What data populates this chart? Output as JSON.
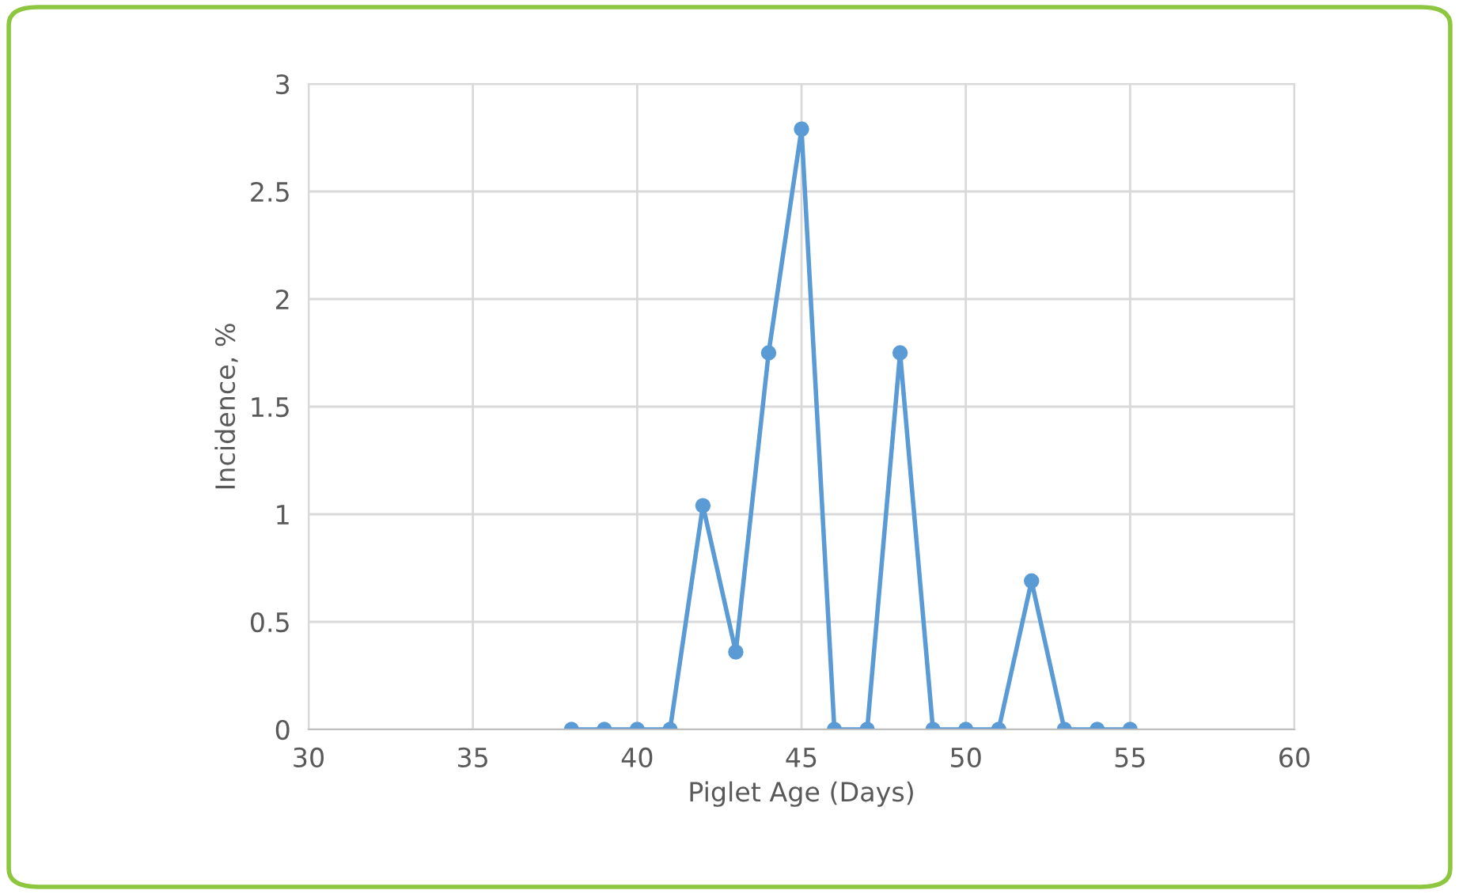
{
  "chart_data": {
    "type": "line",
    "xlabel": "Piglet Age (Days)",
    "ylabel": "Incidence, %",
    "x": [
      38,
      39,
      40,
      41,
      42,
      43,
      44,
      45,
      46,
      47,
      48,
      49,
      50,
      51,
      52,
      53,
      54,
      55
    ],
    "series": [
      {
        "color": "#5b9bd5",
        "values": [
          0,
          0,
          0,
          0,
          1.04,
          0.36,
          1.75,
          2.79,
          0,
          0,
          1.75,
          0,
          0,
          0,
          0.69,
          0,
          0,
          0
        ]
      }
    ],
    "xlim": [
      30,
      60
    ],
    "xticks": [
      30,
      35,
      40,
      45,
      50,
      55,
      60
    ],
    "ylim": [
      0,
      3
    ],
    "yticks": [
      0,
      0.5,
      1,
      1.5,
      2,
      2.5,
      3
    ],
    "grid": true,
    "marker": "circle",
    "line_style": "solid"
  }
}
